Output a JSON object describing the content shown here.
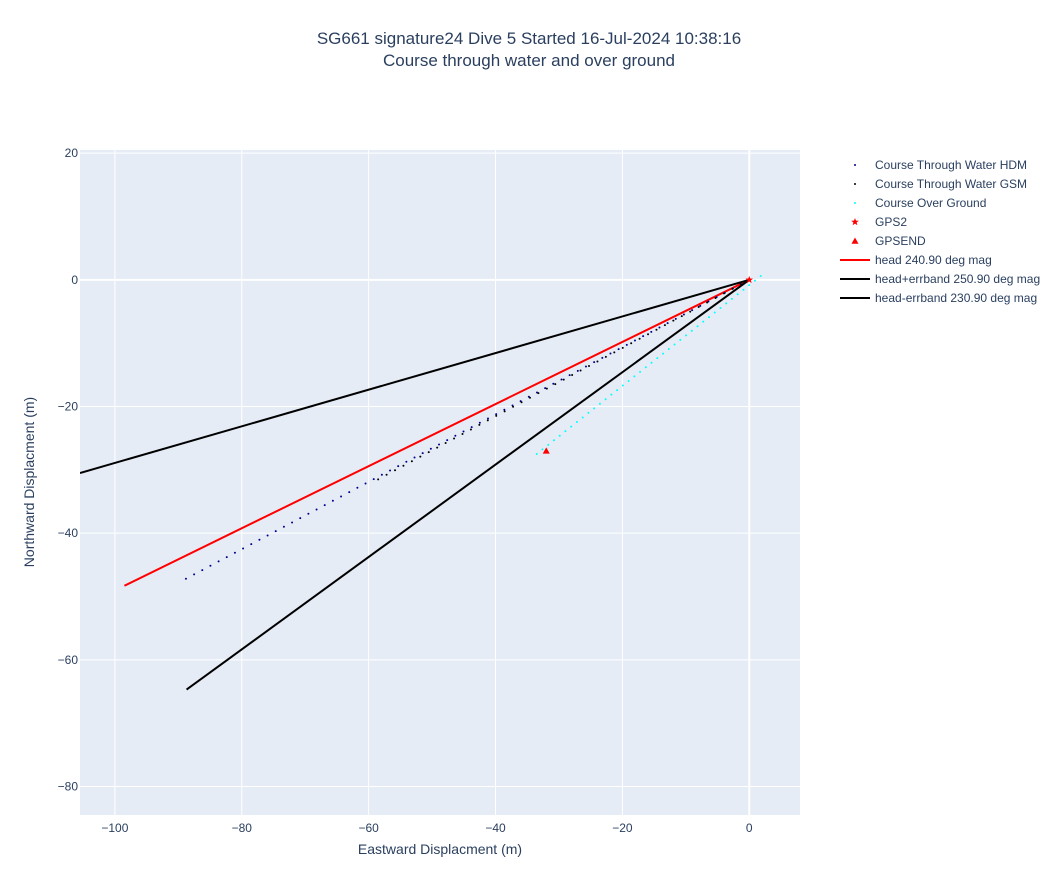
{
  "chart_data": {
    "type": "scatter",
    "title": "SG661 signature24 Dive 5 Started 16-Jul-2024 10:38:16",
    "subtitle": "Course through water and over ground",
    "xlabel": "Eastward Displacment (m)",
    "ylabel": "Northward Displacment (m)",
    "xlim": [
      -105.5,
      8
    ],
    "ylim": [
      -84.5,
      20.5
    ],
    "xticks": [
      -100,
      -80,
      -60,
      -40,
      -20,
      0
    ],
    "yticks": [
      20,
      0,
      -20,
      -40,
      -60,
      -80
    ],
    "xtick_labels": [
      "−100",
      "−80",
      "−60",
      "−40",
      "−20",
      "0"
    ],
    "ytick_labels": [
      "20",
      "0",
      "−20",
      "−40",
      "−60",
      "−80"
    ],
    "grid": true,
    "legend_position": "top-right",
    "series": [
      {
        "name": "Course Through Water HDM",
        "mode": "markers",
        "marker": "dot",
        "color": "#00008b",
        "x_start": 0,
        "y_start": 0,
        "x_end": -88.8,
        "y_end": -47.2,
        "n_points": 70
      },
      {
        "name": "Course Through Water GSM",
        "mode": "markers",
        "marker": "dot",
        "color": "#000000",
        "x_start": 0,
        "y_start": 0,
        "x_end": -58.5,
        "y_end": -31.5,
        "n_points": 45
      },
      {
        "name": "Course Over Ground",
        "mode": "markers",
        "marker": "dot",
        "color": "#00ffff",
        "x_start": 1.8,
        "y_start": 0.6,
        "x_end": -33.5,
        "y_end": -27.5,
        "n_points": 40
      },
      {
        "name": "GPS2",
        "mode": "markers",
        "marker": "star",
        "color": "#ff0000",
        "x": [
          0
        ],
        "y": [
          0
        ]
      },
      {
        "name": "GPSEND",
        "mode": "markers",
        "marker": "triangle-up",
        "color": "#ff0000",
        "x": [
          -32
        ],
        "y": [
          -27
        ]
      },
      {
        "name": "head 240.90 deg mag",
        "mode": "lines",
        "color": "#ff0000",
        "x": [
          0,
          -98.5
        ],
        "y": [
          0,
          -48.3
        ]
      },
      {
        "name": "head+errband 250.90 deg mag",
        "mode": "lines",
        "color": "#000000",
        "x": [
          0,
          -105.5
        ],
        "y": [
          0,
          -30.5
        ]
      },
      {
        "name": "head-errband 230.90 deg mag",
        "mode": "lines",
        "color": "#000000",
        "x": [
          0,
          -88.7
        ],
        "y": [
          0,
          -64.7
        ]
      }
    ]
  }
}
